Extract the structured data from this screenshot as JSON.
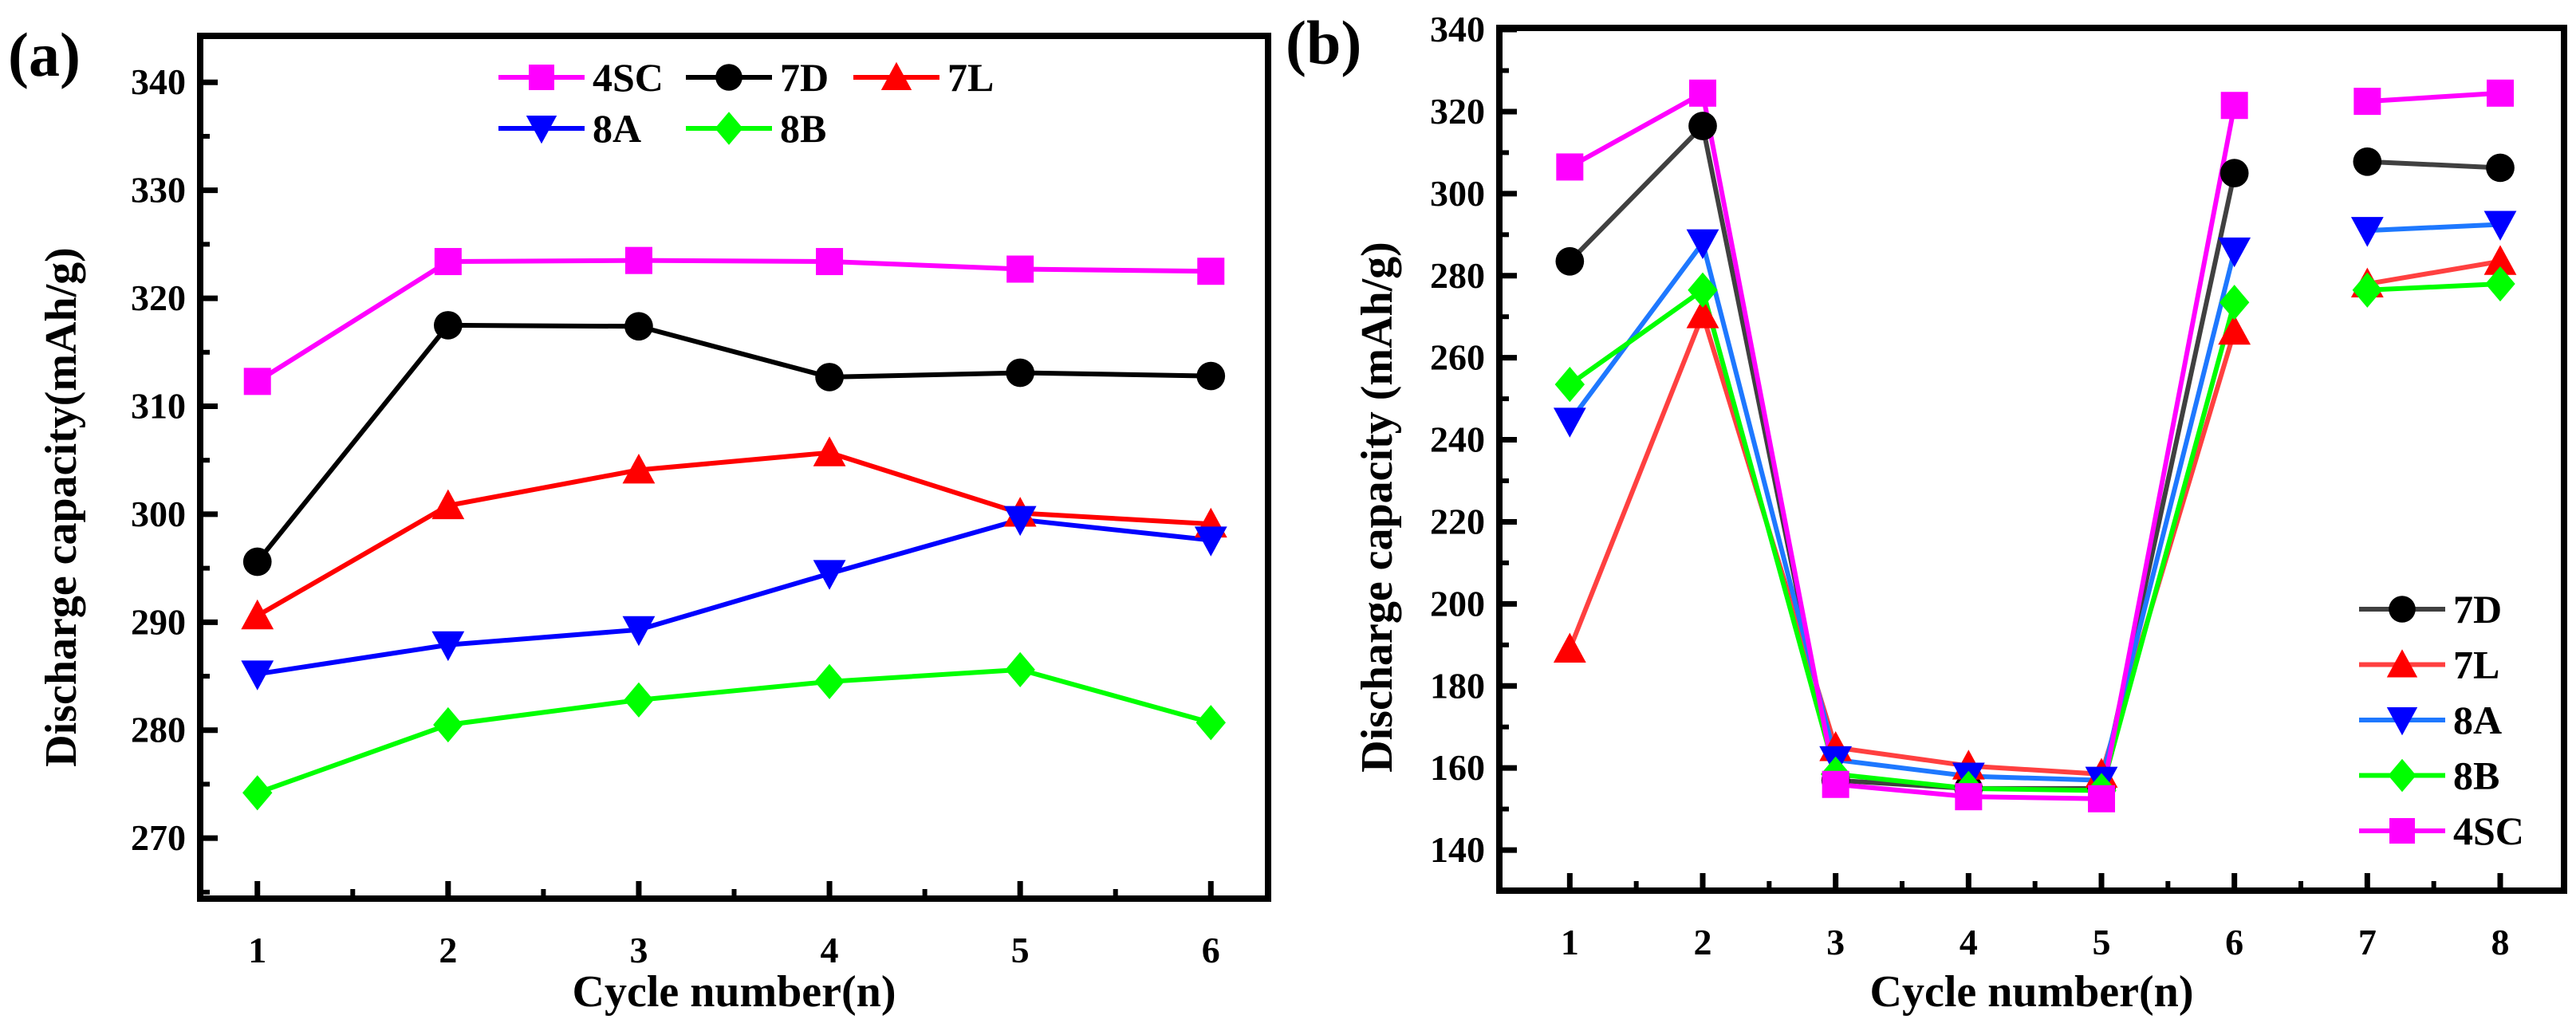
{
  "chart_data": [
    {
      "type": "line",
      "panel_label": "(a)",
      "title": "",
      "xlabel": "Cycle number(n)",
      "ylabel": "Discharge capacity(mAh/g)",
      "x": [
        1,
        2,
        3,
        4,
        5,
        6
      ],
      "xlim": [
        0.7,
        6.3
      ],
      "ylim": [
        264.4,
        344.3
      ],
      "xticks": [
        1,
        2,
        3,
        4,
        5,
        6
      ],
      "yticks": [
        270,
        280,
        290,
        300,
        310,
        320,
        330,
        340
      ],
      "grid": false,
      "legend_placement": "top-center",
      "segments": [
        [
          1,
          6
        ]
      ],
      "series": [
        {
          "name": "4SC",
          "color": "#ff00ff",
          "marker": "square",
          "values": [
            312.3,
            323.4,
            323.5,
            323.4,
            322.7,
            322.5
          ]
        },
        {
          "name": "7D",
          "color": "#000000",
          "marker": "circle",
          "values": [
            295.6,
            317.5,
            317.4,
            312.7,
            313.1,
            312.8
          ]
        },
        {
          "name": "7L",
          "color": "#ff0000",
          "marker": "triangle-up",
          "values": [
            290.6,
            300.8,
            304.1,
            305.7,
            300.1,
            299.1
          ]
        },
        {
          "name": "8A",
          "color": "#0000ff",
          "marker": "triangle-down",
          "values": [
            285.2,
            287.9,
            289.3,
            294.5,
            299.5,
            297.6
          ]
        },
        {
          "name": "8B",
          "color": "#00ff00",
          "marker": "diamond",
          "values": [
            274.2,
            280.5,
            282.8,
            284.5,
            285.6,
            280.7
          ]
        }
      ]
    },
    {
      "type": "line",
      "panel_label": "(b)",
      "title": "",
      "xlabel": "Cycle number(n)",
      "ylabel": "Discharge capacity (mAh/g)",
      "x": [
        1,
        2,
        3,
        4,
        5,
        6,
        7,
        8
      ],
      "xlim": [
        0.47,
        8.48
      ],
      "ylim": [
        130.1,
        340.4
      ],
      "xticks": [
        1,
        2,
        3,
        4,
        5,
        6,
        7,
        8
      ],
      "yticks": [
        140,
        160,
        180,
        200,
        220,
        240,
        260,
        280,
        300,
        320,
        340
      ],
      "grid": false,
      "legend_placement": "bottom-right",
      "segments": [
        [
          1,
          6
        ],
        [
          7,
          8
        ]
      ],
      "series": [
        {
          "name": "7D",
          "color": "#000000",
          "line_color": "#404040",
          "marker": "circle",
          "values": [
            283.5,
            316.5,
            157.0,
            155.0,
            155.0,
            305.0,
            307.8,
            306.3
          ]
        },
        {
          "name": "7L",
          "color": "#ff0000",
          "line_color": "#ff4040",
          "marker": "triangle-up",
          "values": [
            189.0,
            270.5,
            165.0,
            160.5,
            158.5,
            266.5,
            278.0,
            283.5
          ]
        },
        {
          "name": "8A",
          "color": "#0000ff",
          "line_color": "#1e78ff",
          "marker": "triangle-down",
          "values": [
            244.5,
            288.0,
            162.0,
            158.0,
            157.0,
            286.0,
            291.0,
            292.5
          ]
        },
        {
          "name": "8B",
          "color": "#00ff00",
          "line_color": "#00ff00",
          "marker": "diamond",
          "values": [
            253.5,
            276.5,
            158.5,
            155.0,
            154.5,
            273.5,
            276.5,
            278.0
          ]
        },
        {
          "name": "4SC",
          "color": "#ff00ff",
          "line_color": "#ff00ff",
          "marker": "square",
          "values": [
            306.5,
            324.5,
            156.0,
            153.0,
            152.5,
            321.5,
            322.5,
            324.5
          ]
        }
      ]
    }
  ]
}
